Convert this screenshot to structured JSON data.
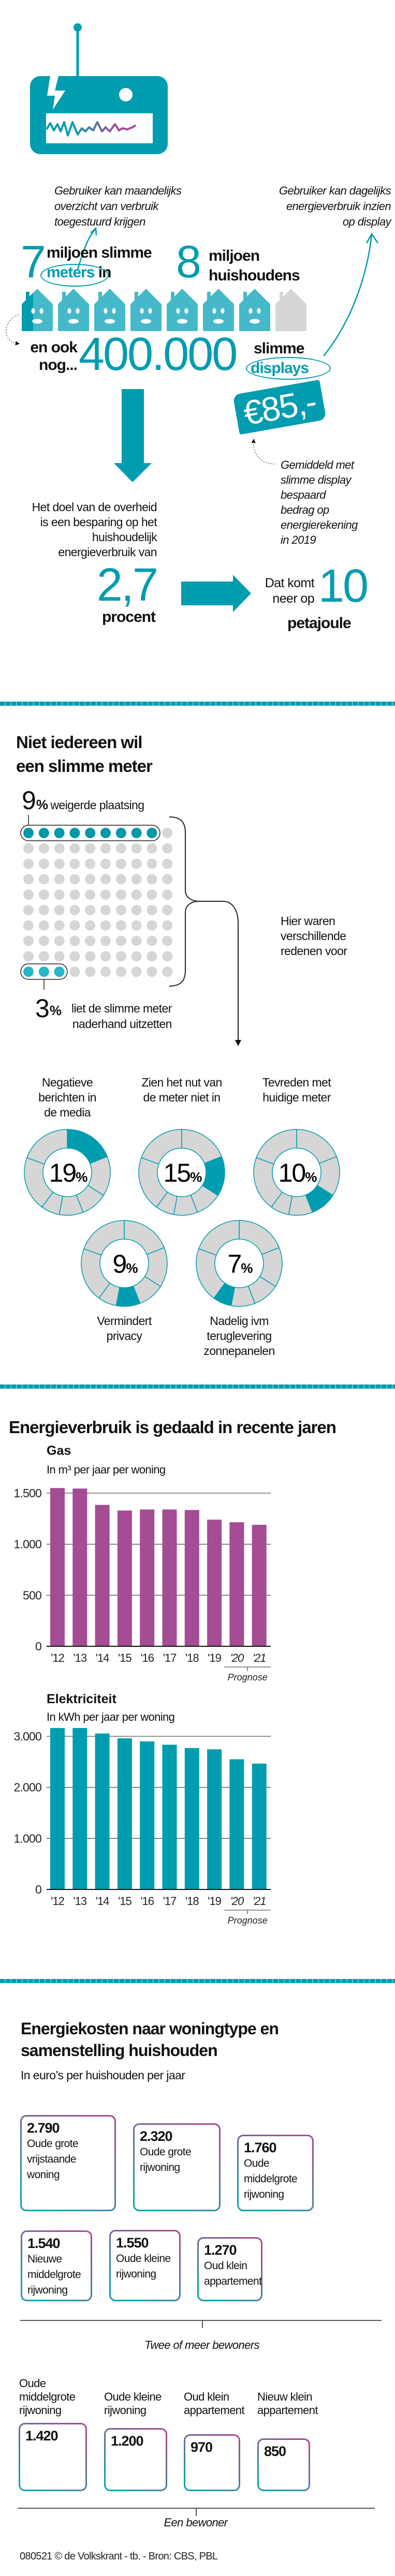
{
  "colors": {
    "teal": "#009caf",
    "light_teal": "#45b9c9",
    "purple": "#a44c94",
    "gray": "#d6d6d6"
  },
  "intro": {
    "note_monthly": [
      "Gebruiker kan maandelijks",
      "overzicht van verbruik",
      "toegestuurd krijgen"
    ],
    "note_daily": [
      "Gebruiker kan dagelijks",
      "energieverbruik inzien",
      "op display"
    ],
    "meters_number": "7",
    "meters_line1": "miljoen slimme",
    "meters_word": "meters",
    "meters_in": "in",
    "households_number": "8",
    "households_line1": "miljoen",
    "households_line2": "huishoudens",
    "houses_total": 8,
    "houses_with_meter": 7,
    "also_line1": "en ook",
    "also_line2": "nog...",
    "displays_number": "400.000",
    "displays_line1": "slimme",
    "displays_word": "displays",
    "price": "€85,-",
    "savings_note": [
      "Gemiddeld met",
      "slimme display",
      "bespaard",
      "bedrag op",
      "energierekening",
      "in 2019"
    ],
    "goal_text": [
      "Het doel van de overheid",
      "is een besparing op het",
      "huishoudelijk",
      "energieverbruik van"
    ],
    "goal_value": "2,7",
    "goal_unit": "procent",
    "result_text": [
      "Dat komt",
      "neer op"
    ],
    "result_value": "10",
    "result_unit": "petajoule"
  },
  "refusal": {
    "title": [
      "Niet iedereen wil",
      "een slimme meter"
    ],
    "refused_pct": "9",
    "refused_label": "weigerde plaatsing",
    "refused_count": 9,
    "turned_off_pct": "3",
    "turned_off_label": [
      "liet de slimme meter",
      "naderhand uitzetten"
    ],
    "turned_off_count": 3,
    "total_dots": 100,
    "percent_sign": "%",
    "reasons_note": [
      "Hier waren",
      "verschillende",
      "redenen voor"
    ],
    "reasons": [
      {
        "pct": 19,
        "value": "19",
        "label": [
          "Negatieve",
          "berichten in",
          "de media"
        ]
      },
      {
        "pct": 15,
        "value": "15",
        "label": [
          "Zien het nut van",
          "de meter niet in"
        ]
      },
      {
        "pct": 10,
        "value": "10",
        "label": [
          "Tevreden met",
          "huidige meter"
        ]
      },
      {
        "pct": 9,
        "value": "9",
        "label": [
          "Vermindert",
          "privacy"
        ]
      },
      {
        "pct": 7,
        "value": "7",
        "label": [
          "Nadelig ivm",
          "teruglevering",
          "zonnepanelen"
        ]
      }
    ]
  },
  "usage": {
    "title": "Energieverbruik is gedaald in recente jaren",
    "prognose_label": "Prognose"
  },
  "chart_data": [
    {
      "type": "bar",
      "title": "Gas",
      "subtitle": "In m³ per jaar per woning",
      "categories": [
        "'12",
        "'13",
        "'14",
        "'15",
        "'16",
        "'17",
        "'18",
        "'19",
        "'20",
        "'21"
      ],
      "values": [
        1550,
        1545,
        1385,
        1330,
        1340,
        1340,
        1335,
        1240,
        1215,
        1190
      ],
      "yticks": [
        0,
        500,
        1000,
        1500
      ],
      "ytick_labels": [
        "0",
        "500",
        "1.000",
        "1.500"
      ],
      "ylim": [
        0,
        1500
      ],
      "grid": true,
      "forecast_categories": [
        "'20",
        "'21"
      ],
      "color": "#a44c94"
    },
    {
      "type": "bar",
      "title": "Elektriciteit",
      "subtitle": "In kWh per jaar per woning",
      "categories": [
        "'12",
        "'13",
        "'14",
        "'15",
        "'16",
        "'17",
        "'18",
        "'19",
        "'20",
        "'21"
      ],
      "values": [
        3255,
        3200,
        3055,
        2960,
        2900,
        2835,
        2770,
        2745,
        2550,
        2465
      ],
      "yticks": [
        0,
        1000,
        2000,
        3000
      ],
      "ytick_labels": [
        "0",
        "1.000",
        "2.000",
        "3.000"
      ],
      "ylim": [
        0,
        3000
      ],
      "grid": true,
      "forecast_categories": [
        "'20",
        "'21"
      ],
      "color": "#009caf"
    }
  ],
  "costs": {
    "title": [
      "Energiekosten naar woningtype en",
      "samenstelling huishouden"
    ],
    "subtitle": "In euro’s per huishouden per jaar",
    "multi": [
      {
        "value": "2.790",
        "label": [
          "Oude grote",
          "vrijstaande",
          "woning"
        ]
      },
      {
        "value": "2.320",
        "label": [
          "Oude grote",
          "rijwoning"
        ]
      },
      {
        "value": "1.760",
        "label": [
          "Oude",
          "middelgrote",
          "rijwoning"
        ]
      },
      {
        "value": "1.540",
        "label": [
          "Nieuwe",
          "middelgrote",
          "rijwoning"
        ]
      },
      {
        "value": "1.550",
        "label": [
          "Oude kleine",
          "rijwoning"
        ]
      },
      {
        "value": "1.270",
        "label": [
          "Oud klein",
          "appartement"
        ]
      }
    ],
    "multi_label": "Twee of meer bewoners",
    "single": [
      {
        "value": "1.420",
        "label": [
          "Oude",
          "middelgrote",
          "rijwoning"
        ]
      },
      {
        "value": "1.200",
        "label": [
          "Oude kleine",
          "rijwoning"
        ]
      },
      {
        "value": "970",
        "label": [
          "Oud klein",
          "appartement"
        ]
      },
      {
        "value": "850",
        "label": [
          "Nieuw klein",
          "appartement"
        ]
      }
    ],
    "single_label": "Een bewoner"
  },
  "footer": "080521 © de Volkskrant - tb. - Bron: CBS, PBL"
}
